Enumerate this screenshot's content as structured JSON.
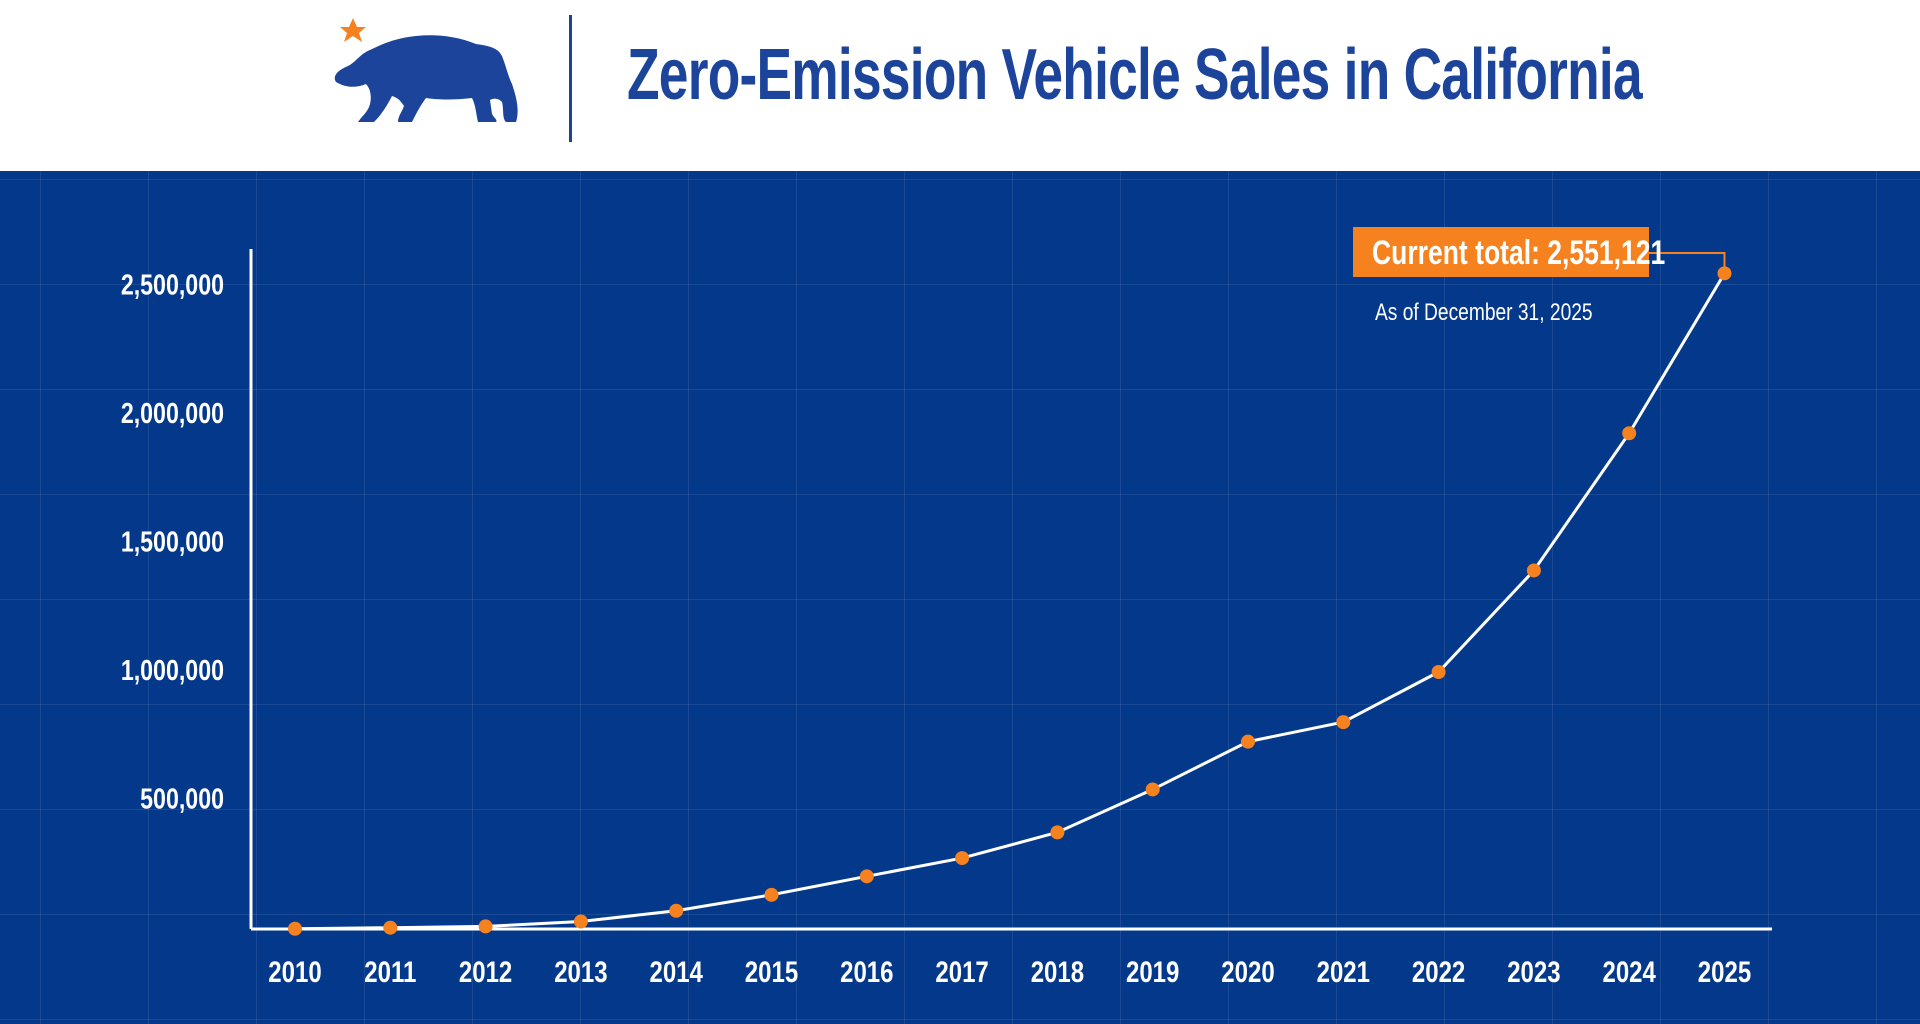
{
  "header": {
    "title": "Zero-Emission Vehicle Sales in California",
    "logo": "california-bear-star-logo"
  },
  "colors": {
    "background": "#04388a",
    "accent": "#f5821f",
    "brand": "#1c449b",
    "line": "#ffffff"
  },
  "chart_data": {
    "type": "line",
    "title": "Zero-Emission Vehicle Sales in California",
    "x": [
      "2010",
      "2011",
      "2012",
      "2013",
      "2014",
      "2015",
      "2016",
      "2017",
      "2018",
      "2019",
      "2020",
      "2021",
      "2022",
      "2023",
      "2024",
      "2025"
    ],
    "values": [
      1000,
      5000,
      10000,
      29000,
      71000,
      133000,
      205000,
      276000,
      376000,
      543000,
      729000,
      805000,
      1000000,
      1395000,
      1929000,
      2551121
    ],
    "y_ticks": [
      500000,
      1000000,
      1500000,
      2000000,
      2500000
    ],
    "y_tick_labels": [
      "500,000",
      "1,000,000",
      "1,500,000",
      "2,000,000",
      "2,500,000"
    ],
    "ylim": [
      0,
      2600000
    ],
    "grid": true,
    "annotation": {
      "label": "Current total: 2,551,121",
      "subtitle": "As of December 31, 2025",
      "target": "2025"
    }
  }
}
